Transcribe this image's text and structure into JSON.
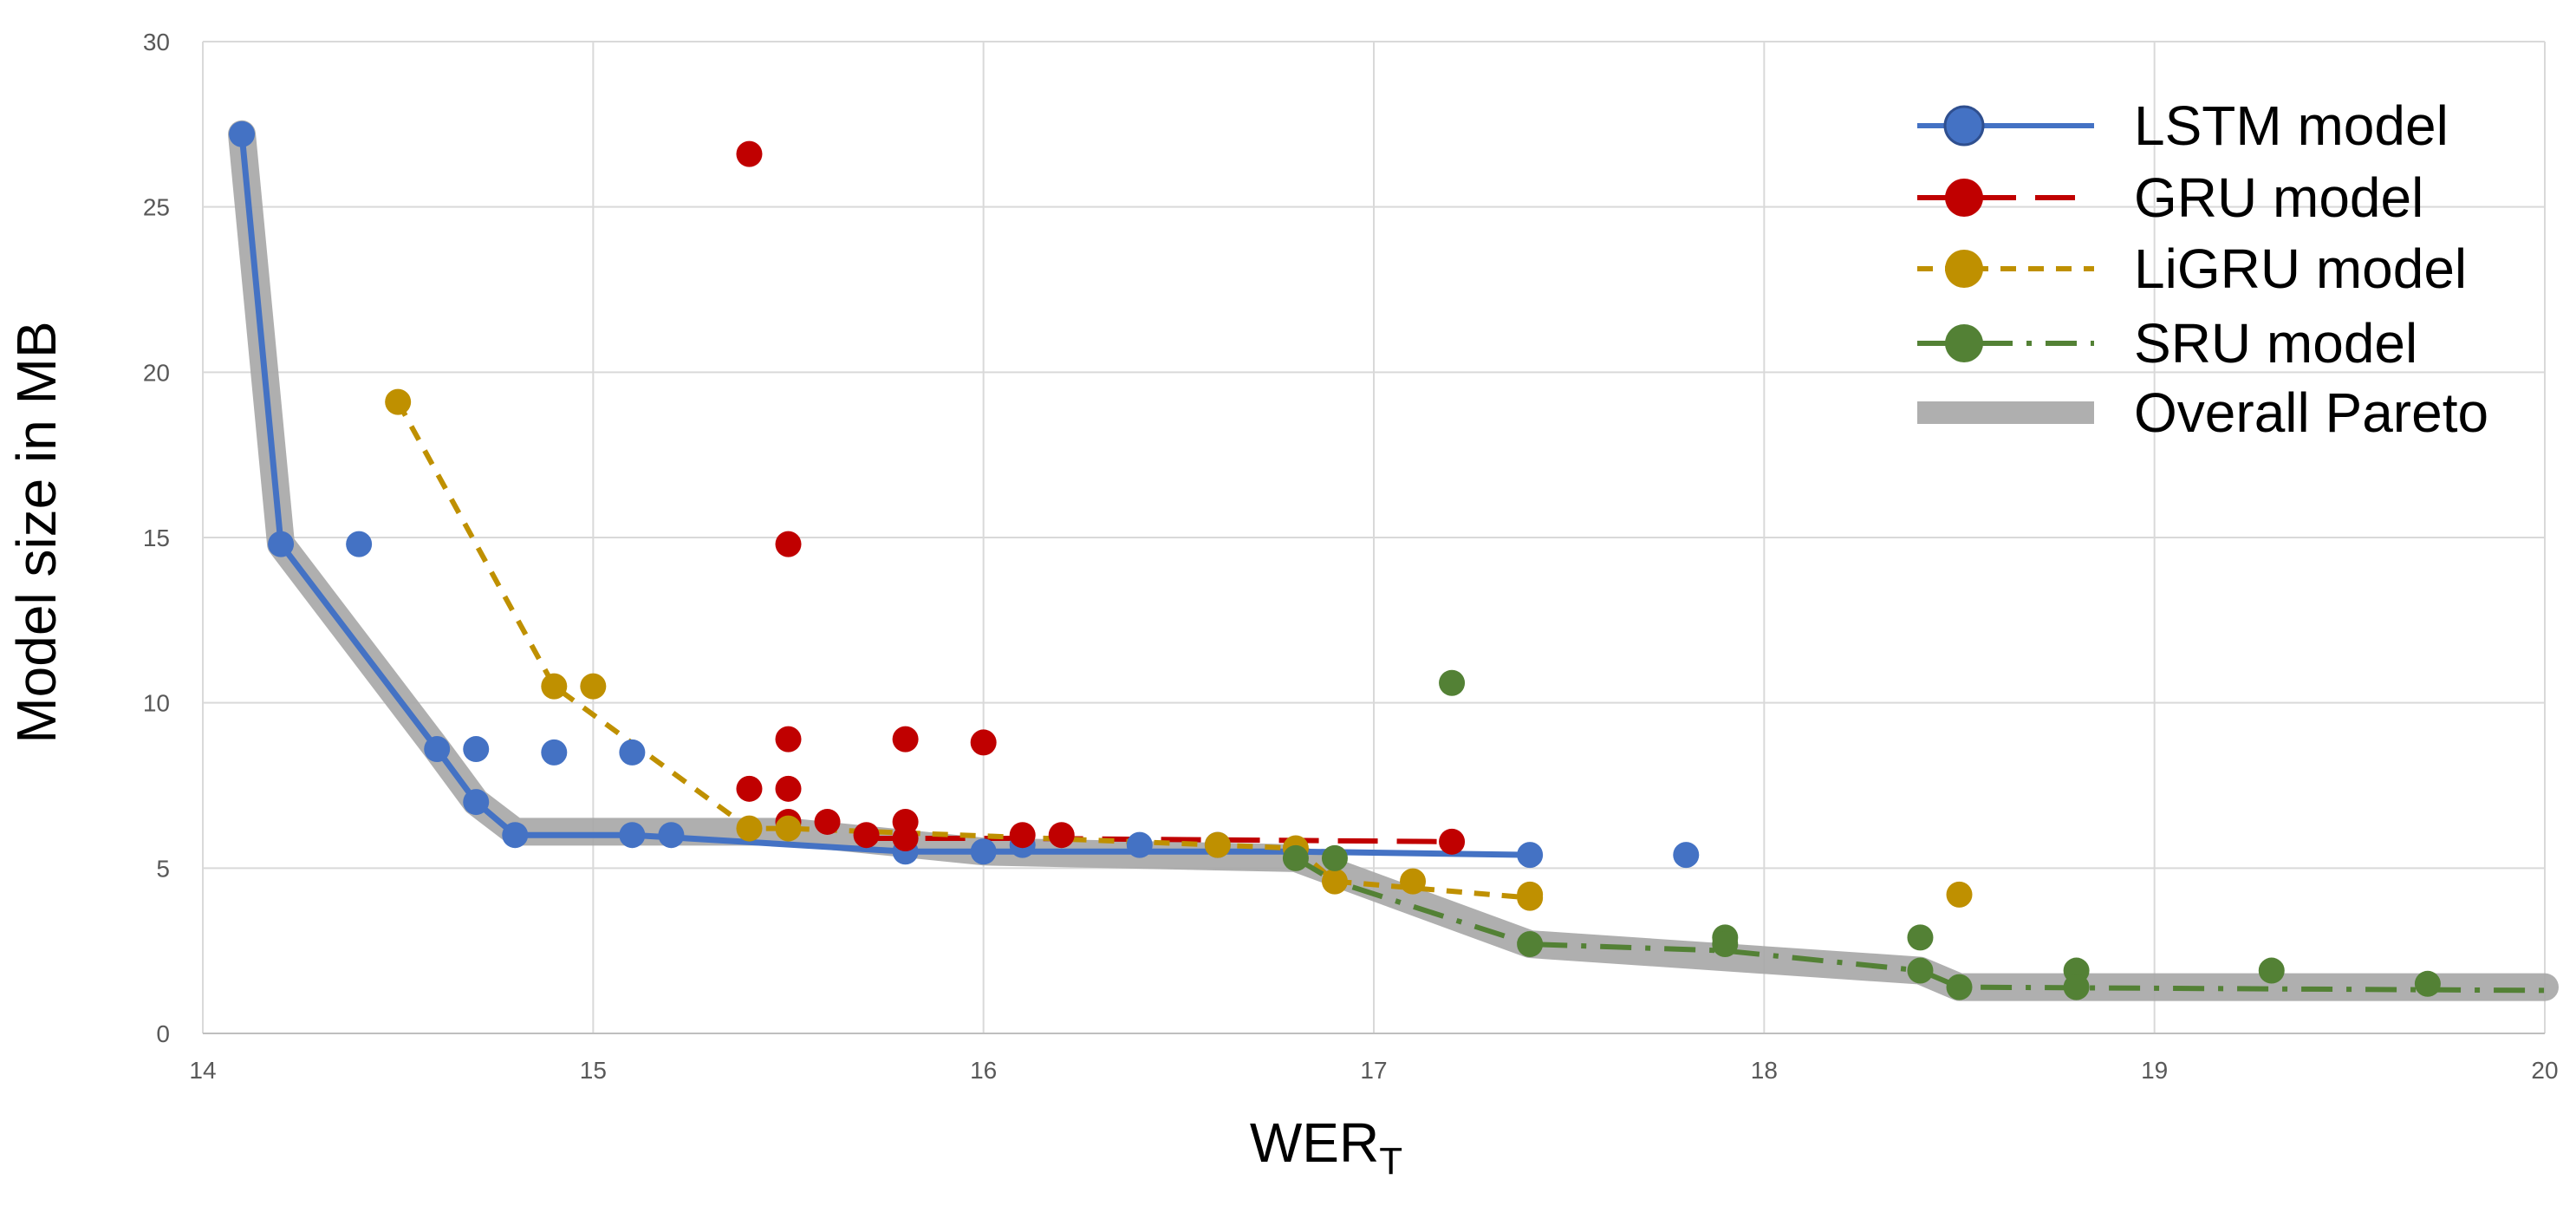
{
  "chart_data": {
    "type": "scatter",
    "title": "",
    "xlabel": "WER",
    "xlabel_subscript": "T",
    "ylabel": "Model size in MB",
    "xlim": [
      14,
      20
    ],
    "ylim": [
      0,
      30
    ],
    "grid": true,
    "legend_position": "top-right",
    "x_ticks": [
      "14",
      "15",
      "16",
      "17",
      "18",
      "19",
      "20"
    ],
    "y_ticks": [
      "0",
      "5",
      "10",
      "15",
      "20",
      "25",
      "30"
    ],
    "series": [
      {
        "name": "LSTM model",
        "color": "#4472C4",
        "line_style": "solid",
        "points": [
          [
            14.1,
            27.2
          ],
          [
            14.2,
            14.8
          ],
          [
            14.4,
            14.8
          ],
          [
            14.6,
            8.6
          ],
          [
            14.7,
            8.6
          ],
          [
            14.7,
            7.0
          ],
          [
            14.8,
            6.0
          ],
          [
            14.9,
            8.5
          ],
          [
            15.1,
            8.5
          ],
          [
            15.1,
            6.0
          ],
          [
            15.2,
            6.0
          ],
          [
            15.8,
            5.5
          ],
          [
            16.0,
            5.5
          ],
          [
            16.1,
            5.7
          ],
          [
            16.4,
            5.7
          ],
          [
            16.6,
            5.7
          ],
          [
            16.8,
            5.5
          ],
          [
            17.4,
            5.4
          ],
          [
            17.8,
            5.4
          ]
        ],
        "front": [
          [
            14.1,
            27.2
          ],
          [
            14.2,
            14.8
          ],
          [
            14.6,
            8.6
          ],
          [
            14.7,
            7.0
          ],
          [
            14.8,
            6.0
          ],
          [
            15.1,
            6.0
          ],
          [
            15.8,
            5.5
          ],
          [
            16.0,
            5.5
          ],
          [
            16.8,
            5.5
          ],
          [
            17.4,
            5.4
          ]
        ]
      },
      {
        "name": "GRU model",
        "color": "#C00000",
        "line_style": "long-dash",
        "points": [
          [
            15.4,
            26.6
          ],
          [
            15.5,
            14.8
          ],
          [
            15.5,
            8.9
          ],
          [
            15.8,
            8.9
          ],
          [
            16.0,
            8.8
          ],
          [
            15.4,
            7.4
          ],
          [
            15.5,
            7.4
          ],
          [
            15.5,
            6.4
          ],
          [
            15.6,
            6.4
          ],
          [
            15.7,
            6.0
          ],
          [
            15.8,
            6.4
          ],
          [
            15.8,
            5.9
          ],
          [
            16.1,
            6.0
          ],
          [
            16.2,
            6.0
          ],
          [
            17.2,
            5.8
          ]
        ],
        "front": [
          [
            15.7,
            5.9
          ],
          [
            16.1,
            5.9
          ],
          [
            17.2,
            5.8
          ]
        ]
      },
      {
        "name": "LiGRU model",
        "color": "#BF9000",
        "line_style": "short-dash",
        "points": [
          [
            14.5,
            19.1
          ],
          [
            14.9,
            10.5
          ],
          [
            15.0,
            10.5
          ],
          [
            15.4,
            6.2
          ],
          [
            15.5,
            6.2
          ],
          [
            16.6,
            5.7
          ],
          [
            16.8,
            5.6
          ],
          [
            16.9,
            4.6
          ],
          [
            17.1,
            4.6
          ],
          [
            17.4,
            4.1
          ],
          [
            17.4,
            4.2
          ],
          [
            18.5,
            4.2
          ]
        ],
        "front": [
          [
            14.5,
            19.1
          ],
          [
            14.9,
            10.5
          ],
          [
            15.4,
            6.2
          ],
          [
            15.5,
            6.2
          ],
          [
            16.6,
            5.7
          ],
          [
            16.8,
            5.6
          ],
          [
            16.9,
            4.6
          ],
          [
            17.4,
            4.1
          ]
        ]
      },
      {
        "name": "SRU model",
        "color": "#538135",
        "line_style": "dash-dot",
        "points": [
          [
            16.8,
            5.3
          ],
          [
            16.9,
            5.3
          ],
          [
            17.2,
            10.6
          ],
          [
            17.4,
            2.7
          ],
          [
            17.9,
            2.9
          ],
          [
            17.9,
            2.7
          ],
          [
            18.4,
            2.9
          ],
          [
            18.4,
            1.9
          ],
          [
            18.5,
            1.4
          ],
          [
            18.8,
            1.9
          ],
          [
            18.8,
            1.4
          ],
          [
            19.3,
            1.9
          ],
          [
            19.7,
            1.5
          ]
        ],
        "front": [
          [
            16.8,
            5.3
          ],
          [
            16.9,
            4.6
          ],
          [
            17.4,
            2.7
          ],
          [
            17.9,
            2.5
          ],
          [
            18.4,
            1.9
          ],
          [
            18.5,
            1.4
          ],
          [
            20.0,
            1.3
          ]
        ]
      },
      {
        "name": "Overall Pareto",
        "color": "#A6A6A6",
        "line_style": "thick",
        "points": [],
        "front": [
          [
            14.1,
            27.2
          ],
          [
            14.2,
            14.8
          ],
          [
            14.6,
            8.6
          ],
          [
            14.7,
            7.0
          ],
          [
            14.8,
            6.1
          ],
          [
            15.5,
            6.1
          ],
          [
            16.0,
            5.5
          ],
          [
            16.8,
            5.3
          ],
          [
            17.4,
            2.7
          ],
          [
            18.4,
            1.9
          ],
          [
            18.5,
            1.4
          ],
          [
            20.0,
            1.4
          ]
        ]
      }
    ]
  }
}
